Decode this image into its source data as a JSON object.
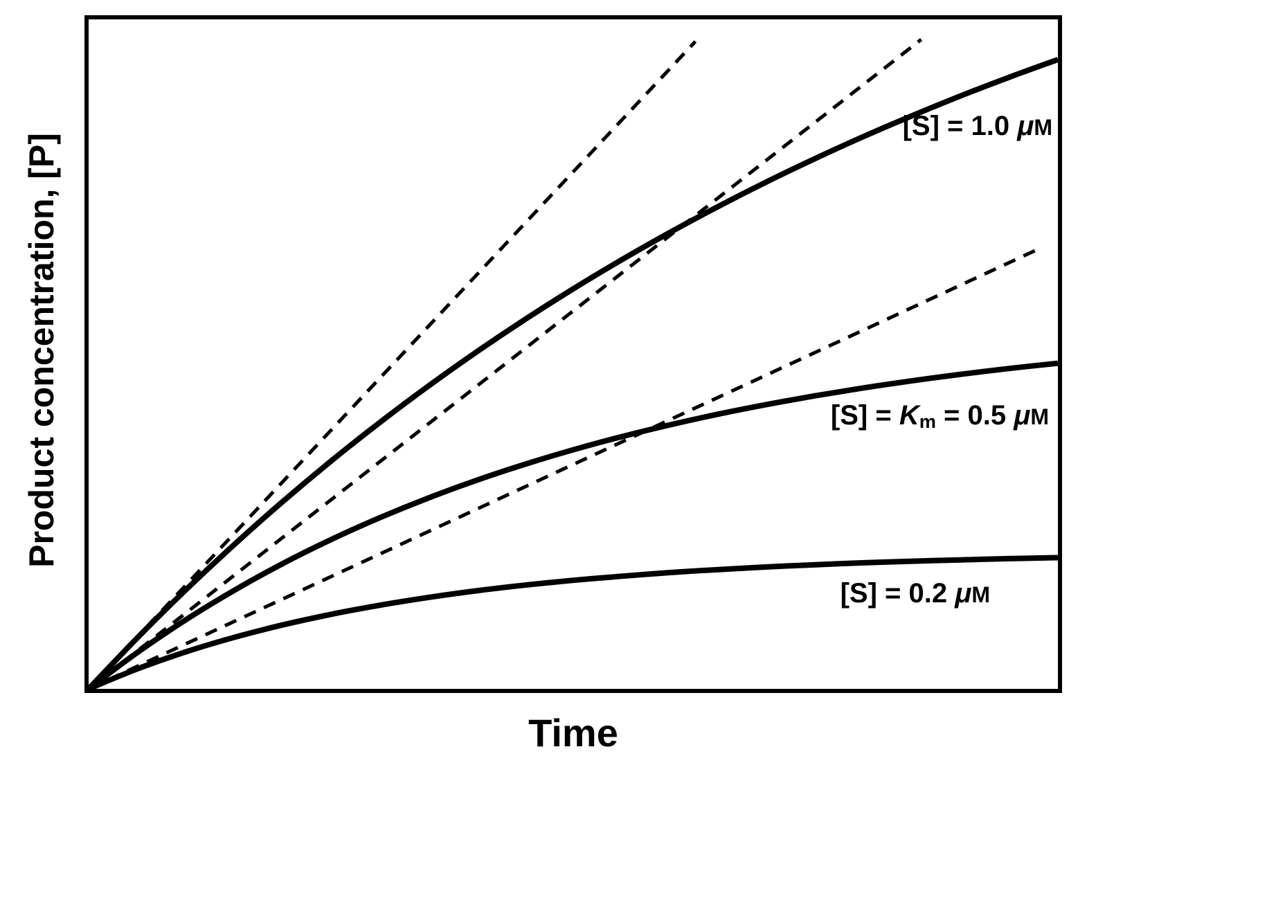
{
  "figure": {
    "background": "#ffffff",
    "line_color": "#000000"
  },
  "chart_data": {
    "type": "line",
    "title": "",
    "xlabel": "Time",
    "ylabel": "Product concentration, [P]",
    "x_axis": {
      "label": "Time",
      "tick_labels": [],
      "range_normalized": [
        0,
        1
      ]
    },
    "y_axis": {
      "label": "Product concentration, [P]",
      "tick_labels": [],
      "range_normalized": [
        0,
        1
      ]
    },
    "grid": false,
    "legend": false,
    "description": "Enzyme-catalyzed product formation progress curves at three substrate concentrations; dashed lines are the initial-rate tangents at t = 0.",
    "series": [
      {
        "id": "tangent_s10",
        "name": "initial-rate tangent for [S] = 1.0 μM",
        "style": "dashed",
        "points": [
          [
            0,
            0
          ],
          [
            0.626,
            0.967
          ]
        ]
      },
      {
        "id": "tangent_s05",
        "name": "initial-rate tangent for [S] = 0.5 μM",
        "style": "dashed",
        "points": [
          [
            0,
            0
          ],
          [
            0.859,
            0.97
          ]
        ]
      },
      {
        "id": "tangent_s02",
        "name": "initial-rate tangent for [S] = 0.2 μM",
        "style": "dashed",
        "points": [
          [
            0,
            0
          ],
          [
            0.98,
            0.657
          ]
        ]
      },
      {
        "id": "curve_s10",
        "name": "[S] = 1.0 μM",
        "style": "solid",
        "points": [
          [
            0,
            0
          ],
          [
            0.05,
            0.0758
          ],
          [
            0.1,
            0.1475
          ],
          [
            0.15,
            0.2152
          ],
          [
            0.2,
            0.2794
          ],
          [
            0.25,
            0.3401
          ],
          [
            0.3,
            0.3974
          ],
          [
            0.35,
            0.4517
          ],
          [
            0.4,
            0.503
          ],
          [
            0.45,
            0.5516
          ],
          [
            0.5,
            0.5975
          ],
          [
            0.55,
            0.6409
          ],
          [
            0.6,
            0.682
          ],
          [
            0.65,
            0.7209
          ],
          [
            0.7,
            0.7577
          ],
          [
            0.75,
            0.7924
          ],
          [
            0.8,
            0.8253
          ],
          [
            0.85,
            0.8564
          ],
          [
            0.9,
            0.8859
          ],
          [
            0.95,
            0.9137
          ],
          [
            1,
            0.94
          ]
        ]
      },
      {
        "id": "curve_s05",
        "name": "[S] = Km = 0.5 μM",
        "style": "solid",
        "points": [
          [
            0,
            0
          ],
          [
            0.05,
            0.054
          ],
          [
            0.1,
            0.1029
          ],
          [
            0.15,
            0.147
          ],
          [
            0.2,
            0.1869
          ],
          [
            0.25,
            0.2229
          ],
          [
            0.3,
            0.2554
          ],
          [
            0.35,
            0.2848
          ],
          [
            0.4,
            0.3114
          ],
          [
            0.45,
            0.3354
          ],
          [
            0.5,
            0.3571
          ],
          [
            0.55,
            0.3767
          ],
          [
            0.6,
            0.3944
          ],
          [
            0.65,
            0.4104
          ],
          [
            0.7,
            0.4248
          ],
          [
            0.75,
            0.4378
          ],
          [
            0.8,
            0.4496
          ],
          [
            0.85,
            0.4603
          ],
          [
            0.9,
            0.4699
          ],
          [
            0.95,
            0.4786
          ],
          [
            1,
            0.4864
          ]
        ]
      },
      {
        "id": "curve_s02",
        "name": "[S] = 0.2 μM",
        "style": "solid",
        "points": [
          [
            0,
            0
          ],
          [
            0.05,
            0.0297
          ],
          [
            0.1,
            0.0551
          ],
          [
            0.15,
            0.0768
          ],
          [
            0.2,
            0.0954
          ],
          [
            0.25,
            0.1113
          ],
          [
            0.3,
            0.1248
          ],
          [
            0.35,
            0.1364
          ],
          [
            0.4,
            0.1464
          ],
          [
            0.45,
            0.1549
          ],
          [
            0.5,
            0.1621
          ],
          [
            0.55,
            0.1683
          ],
          [
            0.6,
            0.1737
          ],
          [
            0.65,
            0.1782
          ],
          [
            0.7,
            0.1821
          ],
          [
            0.75,
            0.1854
          ],
          [
            0.8,
            0.1883
          ],
          [
            0.85,
            0.1907
          ],
          [
            0.9,
            0.1927
          ],
          [
            0.95,
            0.1945
          ],
          [
            1,
            0.196
          ]
        ]
      }
    ],
    "annotations": [
      {
        "text": "[S] = 1.0 μM",
        "anchor": "right",
        "x": 0.994,
        "y": 0.841
      },
      {
        "text": "[S] = Km = 0.5 μM",
        "anchor": "right",
        "x": 0.991,
        "y": 0.408
      },
      {
        "text": "[S] = 0.2 μM",
        "anchor": "right",
        "x": 0.93,
        "y": 0.143
      }
    ]
  },
  "labels": {
    "top": {
      "pre": "[S] = 1.0 ",
      "mu": "μ",
      "unit": "M"
    },
    "mid": {
      "pre": "[S] = ",
      "km_base": "K",
      "km_sub": "m",
      "eq": " = 0.5 ",
      "mu": "μ",
      "unit": "M"
    },
    "bot": {
      "pre": "[S] = 0.2 ",
      "mu": "μ",
      "unit": "M"
    }
  }
}
